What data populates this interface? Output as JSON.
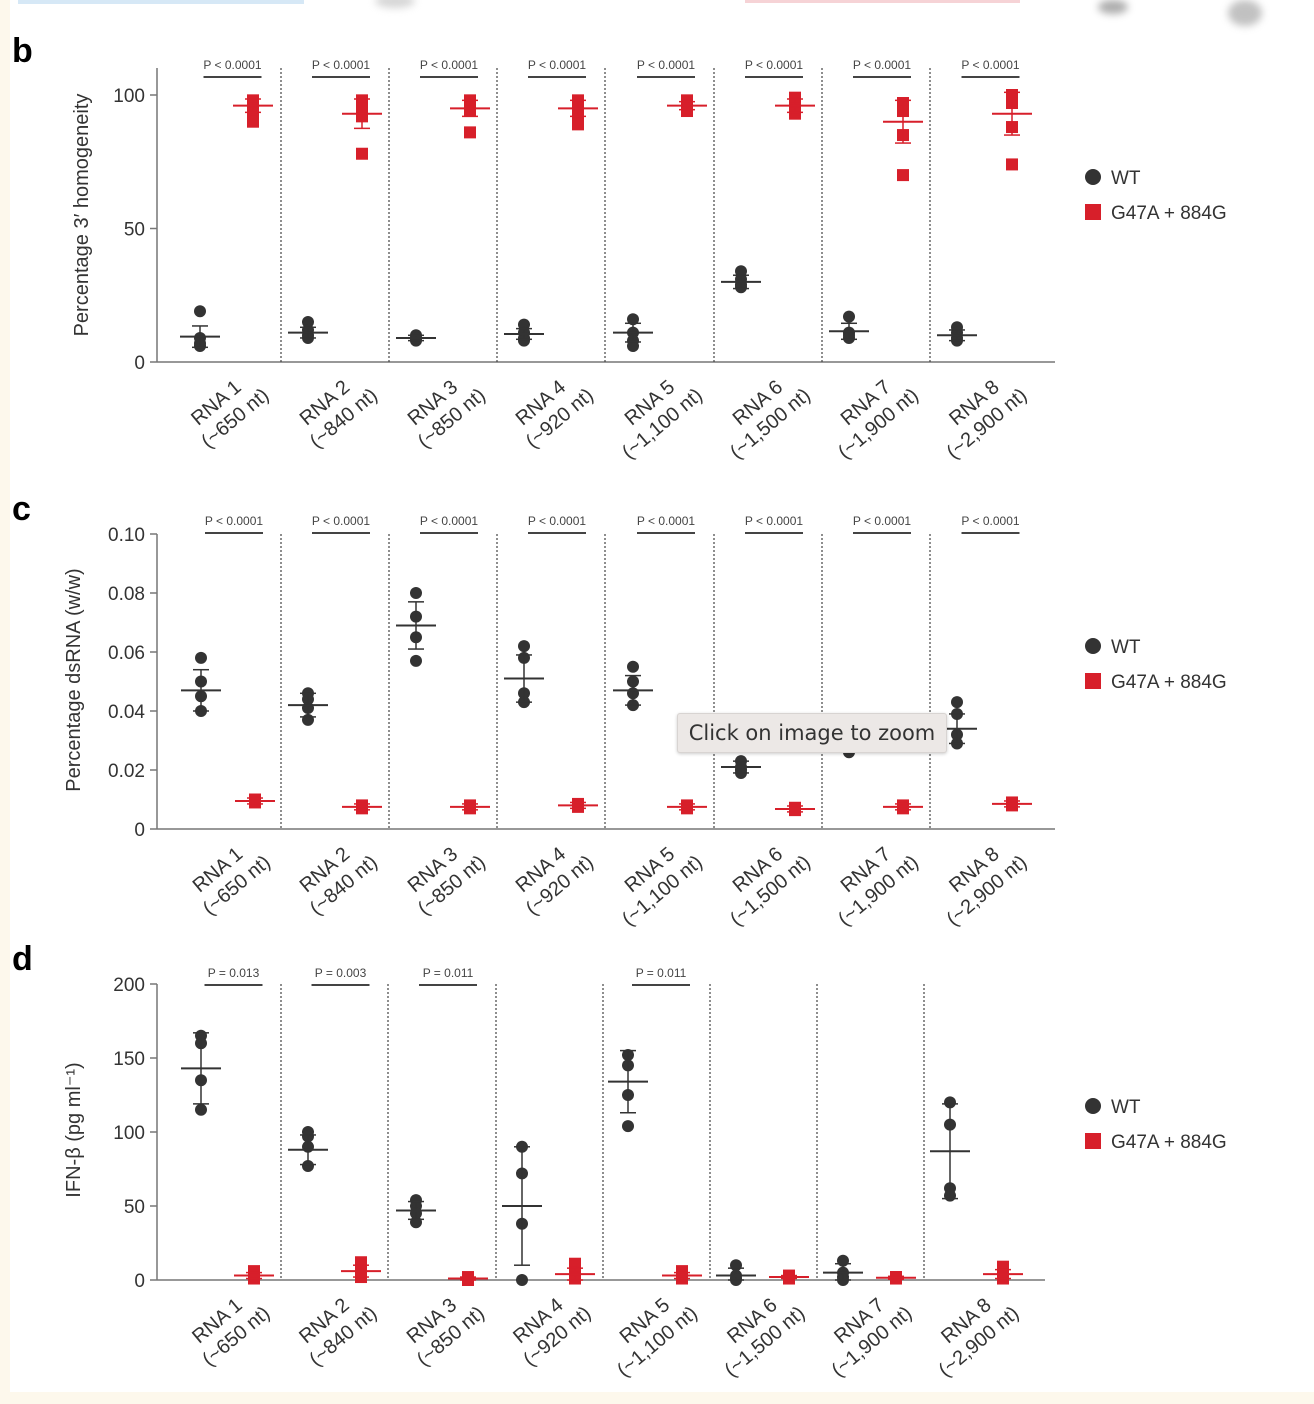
{
  "tooltip": "Click on image to zoom",
  "colors": {
    "wt": "#333333",
    "mut": "#d71f2a"
  },
  "legend": {
    "wt": "WT",
    "mut": "G47A + 884G"
  },
  "categories": [
    [
      "RNA 1",
      "(~650 nt)"
    ],
    [
      "RNA 2",
      "(~840 nt)"
    ],
    [
      "RNA 3",
      "(~850 nt)"
    ],
    [
      "RNA 4",
      "(~920 nt)"
    ],
    [
      "RNA 5",
      "(~1,100 nt)"
    ],
    [
      "RNA 6",
      "(~1,500 nt)"
    ],
    [
      "RNA 7",
      "(~1,900 nt)"
    ],
    [
      "RNA 8",
      "(~2,900 nt)"
    ]
  ],
  "chart_data": [
    {
      "panel": "b",
      "type": "scatter",
      "ylabel": "Percentage 3′ homogeneity",
      "ylim": [
        0,
        100
      ],
      "yticks": [
        0,
        50,
        100
      ],
      "ytick_labels": [
        "0",
        "50",
        "100"
      ],
      "pvalues": [
        "P < 0.0001",
        "P < 0.0001",
        "P < 0.0001",
        "P < 0.0001",
        "P < 0.0001",
        "P < 0.0001",
        "P < 0.0001",
        "P < 0.0001"
      ],
      "series": [
        {
          "name": "WT",
          "groups": [
            {
              "points": [
                19,
                9,
                7,
                6
              ],
              "mean": 9.5,
              "err": 4
            },
            {
              "points": [
                15,
                12,
                10,
                9
              ],
              "mean": 11,
              "err": 2
            },
            {
              "points": [
                10,
                9,
                8.5,
                8
              ],
              "mean": 9,
              "err": 1
            },
            {
              "points": [
                14,
                11,
                9,
                8
              ],
              "mean": 10.5,
              "err": 2
            },
            {
              "points": [
                16,
                11,
                8,
                6
              ],
              "mean": 11,
              "err": 3.5
            },
            {
              "points": [
                34,
                31,
                29,
                28
              ],
              "mean": 30,
              "err": 2.5
            },
            {
              "points": [
                17,
                11,
                10,
                9
              ],
              "mean": 11.5,
              "err": 3
            },
            {
              "points": [
                13,
                11,
                9,
                8
              ],
              "mean": 10,
              "err": 2
            }
          ]
        },
        {
          "name": "G47A + 884G",
          "groups": [
            {
              "points": [
                98,
                95,
                93,
                90
              ],
              "mean": 96,
              "err": 2.5
            },
            {
              "points": [
                98,
                95,
                92,
                78
              ],
              "mean": 93,
              "err": 5.5
            },
            {
              "points": [
                98,
                96,
                94,
                86
              ],
              "mean": 95,
              "err": 3
            },
            {
              "points": [
                98,
                96,
                93,
                89
              ],
              "mean": 95,
              "err": 3
            },
            {
              "points": [
                98,
                96,
                95,
                94
              ],
              "mean": 96,
              "err": 1.5
            },
            {
              "points": [
                99,
                97,
                95,
                93
              ],
              "mean": 96,
              "err": 2.5
            },
            {
              "points": [
                97,
                94,
                85,
                70
              ],
              "mean": 90,
              "err": 8
            },
            {
              "points": [
                100,
                97,
                88,
                74
              ],
              "mean": 93,
              "err": 8
            }
          ]
        }
      ]
    },
    {
      "panel": "c",
      "type": "scatter",
      "ylabel": "Percentage dsRNA (w/w)",
      "ylim": [
        0,
        0.1
      ],
      "yticks": [
        0,
        0.02,
        0.04,
        0.06,
        0.08,
        0.1
      ],
      "ytick_labels": [
        "0",
        "0.02",
        "0.04",
        "0.06",
        "0.08",
        "0.10"
      ],
      "pvalues": [
        "P < 0.0001",
        "P < 0.0001",
        "P < 0.0001",
        "P < 0.0001",
        "P < 0.0001",
        "P < 0.0001",
        "P < 0.0001",
        "P < 0.0001"
      ],
      "series": [
        {
          "name": "WT",
          "groups": [
            {
              "points": [
                0.058,
                0.05,
                0.045,
                0.04
              ],
              "mean": 0.047,
              "err": 0.007
            },
            {
              "points": [
                0.046,
                0.044,
                0.041,
                0.037
              ],
              "mean": 0.042,
              "err": 0.004
            },
            {
              "points": [
                0.08,
                0.072,
                0.065,
                0.057
              ],
              "mean": 0.069,
              "err": 0.008
            },
            {
              "points": [
                0.062,
                0.058,
                0.046,
                0.043
              ],
              "mean": 0.051,
              "err": 0.008
            },
            {
              "points": [
                0.055,
                0.05,
                0.046,
                0.042
              ],
              "mean": 0.047,
              "err": 0.005
            },
            {
              "points": [
                0.023,
                0.021,
                0.02,
                0.019
              ],
              "mean": 0.021,
              "err": 0.002
            },
            {
              "points": [
                0.034,
                0.031,
                0.028,
                0.026
              ],
              "mean": 0.03,
              "err": 0.003
            },
            {
              "points": [
                0.043,
                0.039,
                0.032,
                0.029
              ],
              "mean": 0.034,
              "err": 0.005
            }
          ]
        },
        {
          "name": "G47A + 884G",
          "groups": [
            {
              "points": [
                0.01,
                0.0095,
                0.009
              ],
              "mean": 0.0095,
              "err": 0.001
            },
            {
              "points": [
                0.008,
                0.0075,
                0.007
              ],
              "mean": 0.0075,
              "err": 0.001
            },
            {
              "points": [
                0.008,
                0.0075,
                0.007
              ],
              "mean": 0.0075,
              "err": 0.001
            },
            {
              "points": [
                0.0085,
                0.008,
                0.0075
              ],
              "mean": 0.008,
              "err": 0.001
            },
            {
              "points": [
                0.008,
                0.0075,
                0.007
              ],
              "mean": 0.0075,
              "err": 0.001
            },
            {
              "points": [
                0.0072,
                0.0068,
                0.0064
              ],
              "mean": 0.0068,
              "err": 0.001
            },
            {
              "points": [
                0.008,
                0.0075,
                0.007
              ],
              "mean": 0.0075,
              "err": 0.001
            },
            {
              "points": [
                0.009,
                0.0085,
                0.008
              ],
              "mean": 0.0085,
              "err": 0.001
            }
          ]
        }
      ]
    },
    {
      "panel": "d",
      "type": "scatter",
      "ylabel": "IFN-β (pg ml⁻¹)",
      "ylim": [
        0,
        200
      ],
      "yticks": [
        0,
        50,
        100,
        150,
        200
      ],
      "ytick_labels": [
        "0",
        "50",
        "100",
        "150",
        "200"
      ],
      "pvalues": [
        "P = 0.013",
        "P = 0.003",
        "P = 0.011",
        null,
        "P = 0.011",
        null,
        null,
        null
      ],
      "series": [
        {
          "name": "WT",
          "groups": [
            {
              "points": [
                165,
                160,
                135,
                115
              ],
              "mean": 143,
              "err": 24
            },
            {
              "points": [
                100,
                97,
                90,
                77
              ],
              "mean": 88,
              "err": 10
            },
            {
              "points": [
                54,
                50,
                45,
                39
              ],
              "mean": 47,
              "err": 6
            },
            {
              "points": [
                90,
                72,
                38,
                0
              ],
              "mean": 50,
              "err": 40
            },
            {
              "points": [
                152,
                145,
                125,
                104
              ],
              "mean": 134,
              "err": 21
            },
            {
              "points": [
                10,
                3,
                1,
                0
              ],
              "mean": 3,
              "err": 5
            },
            {
              "points": [
                13,
                5,
                2,
                0
              ],
              "mean": 5,
              "err": 6
            },
            {
              "points": [
                120,
                105,
                62,
                57
              ],
              "mean": 87,
              "err": 32
            }
          ]
        },
        {
          "name": "G47A + 884G",
          "groups": [
            {
              "points": [
                6,
                3,
                2,
                1
              ],
              "mean": 3,
              "err": 2
            },
            {
              "points": [
                12,
                6,
                4,
                2
              ],
              "mean": 6,
              "err": 4
            },
            {
              "points": [
                2,
                1,
                1,
                0
              ],
              "mean": 1,
              "err": 1
            },
            {
              "points": [
                11,
                5,
                2,
                1
              ],
              "mean": 4,
              "err": 4
            },
            {
              "points": [
                6,
                3,
                2,
                1
              ],
              "mean": 3,
              "err": 2
            },
            {
              "points": [
                3,
                2,
                1,
                1
              ],
              "mean": 2,
              "err": 1
            },
            {
              "points": [
                2,
                2,
                1,
                1
              ],
              "mean": 1.5,
              "err": 1
            },
            {
              "points": [
                9,
                4,
                2,
                1
              ],
              "mean": 4,
              "err": 3
            }
          ]
        }
      ]
    }
  ]
}
